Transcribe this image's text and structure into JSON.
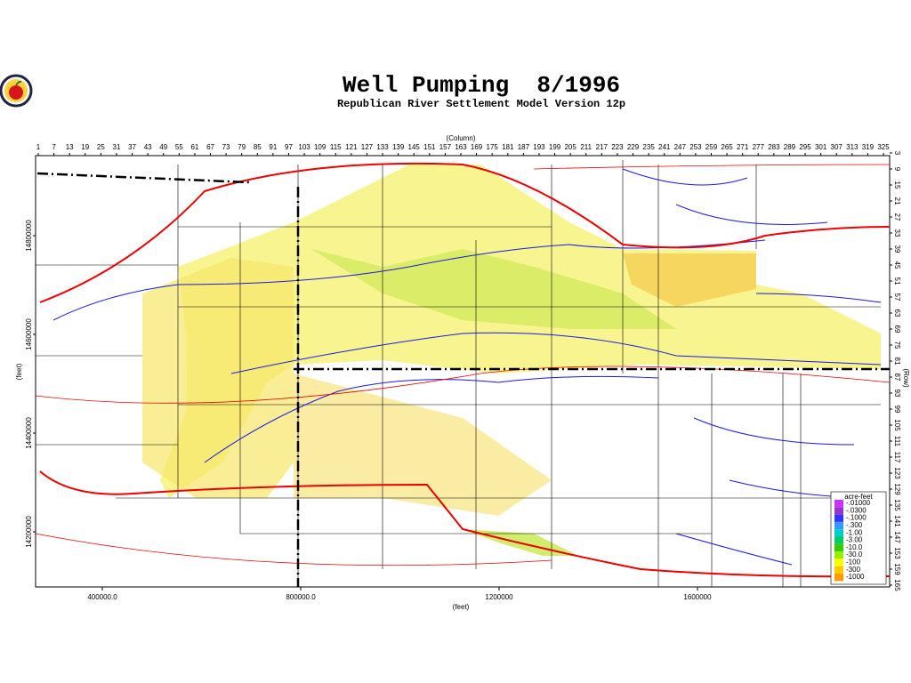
{
  "header": {
    "title": "Well Pumping  8/1996",
    "subtitle": "Republican River Settlement Model Version 12p"
  },
  "map": {
    "column_label": "(Column)",
    "columns": [
      1,
      7,
      13,
      19,
      25,
      31,
      37,
      43,
      49,
      55,
      61,
      67,
      73,
      79,
      85,
      91,
      97,
      103,
      109,
      115,
      121,
      127,
      133,
      139,
      145,
      151,
      157,
      163,
      169,
      175,
      181,
      187,
      193,
      199,
      205,
      211,
      217,
      223,
      229,
      235,
      241,
      247,
      253,
      259,
      265,
      271,
      277,
      283,
      289,
      295,
      301,
      307,
      313,
      319,
      325
    ],
    "row_label": "(Row)",
    "rows": [
      3,
      9,
      15,
      21,
      27,
      33,
      39,
      45,
      51,
      57,
      63,
      69,
      75,
      81,
      87,
      93,
      99,
      105,
      111,
      117,
      123,
      129,
      135,
      141,
      147,
      153,
      159,
      165
    ],
    "y_label": "(feet)",
    "y_ticks": [
      14800000,
      14600000,
      14400000,
      14200000
    ],
    "x_label": "(feet)",
    "x_ticks": [
      {
        "value": 400000,
        "label": "400000.0"
      },
      {
        "value": 800000,
        "label": "800000.0"
      },
      1200000,
      1600000
    ],
    "legend": {
      "title": "acre-feet",
      "items": [
        {
          "label": "-.01000",
          "color": "#cc33ff"
        },
        {
          "label": "-.0300",
          "color": "#9933cc"
        },
        {
          "label": "-.1000",
          "color": "#3333ff"
        },
        {
          "label": "-.300",
          "color": "#3399ff"
        },
        {
          "label": "-1.00",
          "color": "#00cccc"
        },
        {
          "label": "-3.00",
          "color": "#00cc66"
        },
        {
          "label": "-10.0",
          "color": "#33cc00"
        },
        {
          "label": "-30.0",
          "color": "#99ee00"
        },
        {
          "label": "-100",
          "color": "#ffff00"
        },
        {
          "label": "-300",
          "color": "#ffcc00"
        },
        {
          "label": "-1000",
          "color": "#ff9900"
        }
      ]
    }
  }
}
